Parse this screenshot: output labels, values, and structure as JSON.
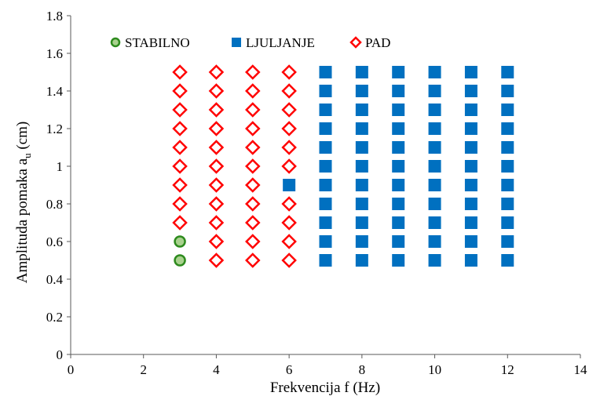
{
  "chart_data": {
    "type": "scatter",
    "title": "",
    "xlabel": "Frekvencija f (Hz)",
    "ylabel_main": "Amplituda pomaka a",
    "ylabel_sub": "u",
    "ylabel_unit": " (cm)",
    "xlim": [
      0,
      14
    ],
    "ylim": [
      0,
      1.8
    ],
    "xticks": [
      0,
      2,
      4,
      6,
      8,
      10,
      12,
      14
    ],
    "yticks": [
      0,
      0.2,
      0.4,
      0.6,
      0.8,
      1,
      1.2,
      1.4,
      1.6,
      1.8
    ],
    "xtick_labels": [
      "0",
      "2",
      "4",
      "6",
      "8",
      "10",
      "12",
      "14"
    ],
    "ytick_labels": [
      "0",
      "0.2",
      "0.4",
      "0.6",
      "0.8",
      "1",
      "1.2",
      "1.4",
      "1.6",
      "1.8"
    ],
    "grid": false,
    "legend_position": "top-left",
    "series": [
      {
        "name": "STABILNO",
        "marker": "circle",
        "fill": "#a9d18e",
        "stroke": "#2e8b1e",
        "points": [
          [
            3,
            0.5
          ],
          [
            3,
            0.6
          ]
        ]
      },
      {
        "name": "LJULJANJE",
        "marker": "square",
        "fill": "#0070c0",
        "stroke": "#0070c0",
        "points": [
          [
            6,
            0.9
          ],
          [
            7,
            0.5
          ],
          [
            7,
            0.6
          ],
          [
            7,
            0.7
          ],
          [
            7,
            0.8
          ],
          [
            7,
            0.9
          ],
          [
            7,
            1.0
          ],
          [
            7,
            1.1
          ],
          [
            7,
            1.2
          ],
          [
            7,
            1.3
          ],
          [
            7,
            1.4
          ],
          [
            7,
            1.5
          ],
          [
            8,
            0.5
          ],
          [
            8,
            0.6
          ],
          [
            8,
            0.7
          ],
          [
            8,
            0.8
          ],
          [
            8,
            0.9
          ],
          [
            8,
            1.0
          ],
          [
            8,
            1.1
          ],
          [
            8,
            1.2
          ],
          [
            8,
            1.3
          ],
          [
            8,
            1.4
          ],
          [
            8,
            1.5
          ],
          [
            9,
            0.5
          ],
          [
            9,
            0.6
          ],
          [
            9,
            0.7
          ],
          [
            9,
            0.8
          ],
          [
            9,
            0.9
          ],
          [
            9,
            1.0
          ],
          [
            9,
            1.1
          ],
          [
            9,
            1.2
          ],
          [
            9,
            1.3
          ],
          [
            9,
            1.4
          ],
          [
            9,
            1.5
          ],
          [
            10,
            0.5
          ],
          [
            10,
            0.6
          ],
          [
            10,
            0.7
          ],
          [
            10,
            0.8
          ],
          [
            10,
            0.9
          ],
          [
            10,
            1.0
          ],
          [
            10,
            1.1
          ],
          [
            10,
            1.2
          ],
          [
            10,
            1.3
          ],
          [
            10,
            1.4
          ],
          [
            10,
            1.5
          ],
          [
            11,
            0.5
          ],
          [
            11,
            0.6
          ],
          [
            11,
            0.7
          ],
          [
            11,
            0.8
          ],
          [
            11,
            0.9
          ],
          [
            11,
            1.0
          ],
          [
            11,
            1.1
          ],
          [
            11,
            1.2
          ],
          [
            11,
            1.3
          ],
          [
            11,
            1.4
          ],
          [
            11,
            1.5
          ],
          [
            12,
            0.5
          ],
          [
            12,
            0.6
          ],
          [
            12,
            0.7
          ],
          [
            12,
            0.8
          ],
          [
            12,
            0.9
          ],
          [
            12,
            1.0
          ],
          [
            12,
            1.1
          ],
          [
            12,
            1.2
          ],
          [
            12,
            1.3
          ],
          [
            12,
            1.4
          ],
          [
            12,
            1.5
          ]
        ]
      },
      {
        "name": "PAD",
        "marker": "diamond",
        "fill": "#ffffff",
        "stroke": "#ff0000",
        "points": [
          [
            3,
            0.7
          ],
          [
            3,
            0.8
          ],
          [
            3,
            0.9
          ],
          [
            3,
            1.0
          ],
          [
            3,
            1.1
          ],
          [
            3,
            1.2
          ],
          [
            3,
            1.3
          ],
          [
            3,
            1.4
          ],
          [
            3,
            1.5
          ],
          [
            4,
            0.5
          ],
          [
            4,
            0.6
          ],
          [
            4,
            0.7
          ],
          [
            4,
            0.8
          ],
          [
            4,
            0.9
          ],
          [
            4,
            1.0
          ],
          [
            4,
            1.1
          ],
          [
            4,
            1.2
          ],
          [
            4,
            1.3
          ],
          [
            4,
            1.4
          ],
          [
            4,
            1.5
          ],
          [
            5,
            0.5
          ],
          [
            5,
            0.6
          ],
          [
            5,
            0.7
          ],
          [
            5,
            0.8
          ],
          [
            5,
            0.9
          ],
          [
            5,
            1.0
          ],
          [
            5,
            1.1
          ],
          [
            5,
            1.2
          ],
          [
            5,
            1.3
          ],
          [
            5,
            1.4
          ],
          [
            5,
            1.5
          ],
          [
            6,
            0.5
          ],
          [
            6,
            0.6
          ],
          [
            6,
            0.7
          ],
          [
            6,
            0.8
          ],
          [
            6,
            1.0
          ],
          [
            6,
            1.1
          ],
          [
            6,
            1.2
          ],
          [
            6,
            1.3
          ],
          [
            6,
            1.4
          ],
          [
            6,
            1.5
          ]
        ]
      }
    ]
  }
}
